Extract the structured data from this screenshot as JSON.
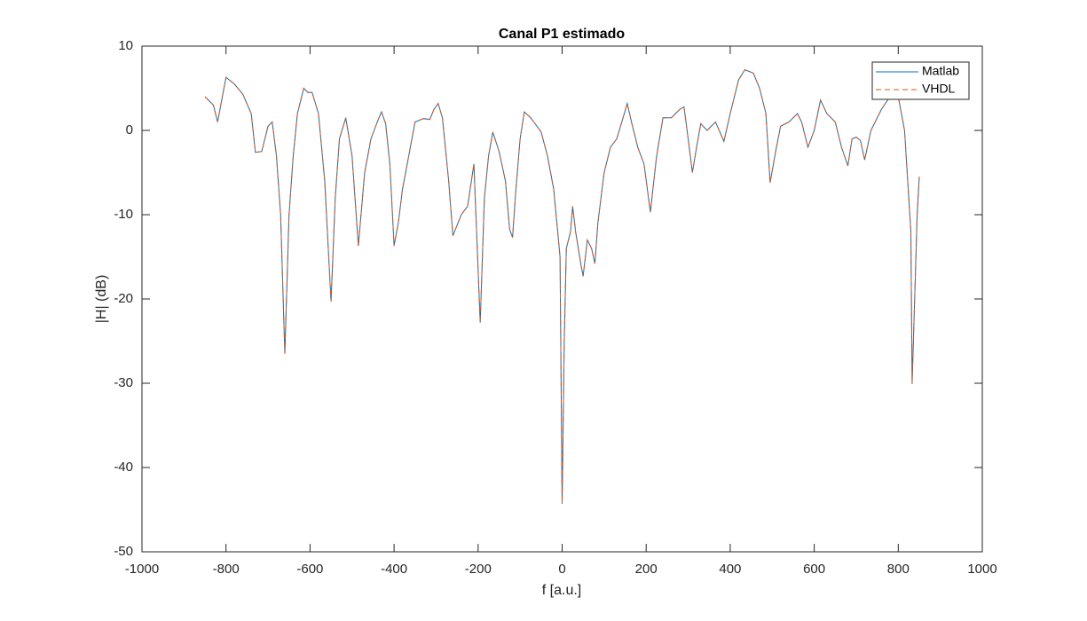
{
  "chart_data": {
    "type": "line",
    "title": "Canal P1 estimado",
    "xlabel": "f [a.u.]",
    "ylabel": "|H| (dB)",
    "x": [
      -850,
      -830,
      -820,
      -800,
      -780,
      -760,
      -740,
      -730,
      -715,
      -700,
      -690,
      -680,
      -670,
      -660,
      -650,
      -640,
      -630,
      -615,
      -605,
      -595,
      -580,
      -565,
      -550,
      -540,
      -530,
      -515,
      -500,
      -485,
      -470,
      -455,
      -440,
      -430,
      -420,
      -410,
      -400,
      -390,
      -380,
      -365,
      -350,
      -330,
      -315,
      -305,
      -295,
      -285,
      -270,
      -260,
      -240,
      -225,
      -210,
      -195,
      -185,
      -175,
      -165,
      -150,
      -135,
      -125,
      -118,
      -110,
      -100,
      -90,
      -75,
      -60,
      -50,
      -35,
      -20,
      -5,
      0,
      5,
      10,
      20,
      25,
      32,
      45,
      50,
      60,
      70,
      78,
      85,
      100,
      115,
      130,
      145,
      155,
      165,
      180,
      195,
      210,
      225,
      240,
      260,
      280,
      290,
      300,
      310,
      320,
      330,
      345,
      365,
      385,
      400,
      420,
      435,
      455,
      470,
      485,
      495,
      510,
      520,
      540,
      560,
      570,
      585,
      600,
      615,
      630,
      650,
      665,
      680,
      690,
      700,
      710,
      720,
      735,
      745,
      760,
      780,
      800,
      815,
      830,
      833,
      845,
      850
    ],
    "series": [
      {
        "name": "Matlab",
        "color": "#0072bd",
        "dash": false,
        "values": [
          4,
          3,
          1,
          6.3,
          5.5,
          4.3,
          2,
          -2.6,
          -2.5,
          0.5,
          1,
          -3,
          -10,
          -26.5,
          -10,
          -3,
          2,
          5,
          4.5,
          4.5,
          2,
          -6,
          -20.3,
          -8,
          -1,
          1.5,
          -3,
          -13.7,
          -5,
          -1,
          1,
          2.2,
          0.8,
          -4,
          -13.7,
          -11,
          -7,
          -3,
          1,
          1.4,
          1.3,
          2.5,
          3.2,
          1.5,
          -6,
          -12.5,
          -10,
          -9,
          -4,
          -22.8,
          -8,
          -3,
          -0.2,
          -2.5,
          -6,
          -11.7,
          -12.7,
          -7,
          -1,
          2.2,
          1.5,
          0.5,
          -0.2,
          -3,
          -7,
          -15,
          -44.3,
          -25,
          -14,
          -12,
          -9,
          -12,
          -16,
          -17.3,
          -13,
          -14,
          -15.8,
          -11,
          -5,
          -2,
          -1,
          1.5,
          3.2,
          1,
          -2,
          -4,
          -9.7,
          -3,
          1.5,
          1.5,
          2.5,
          2.8,
          -1,
          -5,
          -2,
          0.8,
          0,
          1,
          -1.3,
          2,
          6,
          7.2,
          6.8,
          5,
          2,
          -6.2,
          -2,
          0.5,
          1,
          2,
          1,
          -2,
          0,
          3.6,
          2,
          1,
          -2,
          -4.2,
          -1,
          -0.8,
          -1.2,
          -3.5,
          0,
          1,
          2.5,
          4,
          4,
          0,
          -12,
          -30.1,
          -10,
          -5.5
        ]
      },
      {
        "name": "VHDL",
        "color": "#d95319",
        "dash": true,
        "values": [
          4,
          3,
          1,
          6.3,
          5.5,
          4.3,
          2,
          -2.6,
          -2.5,
          0.5,
          1,
          -3,
          -10,
          -26.5,
          -10,
          -3,
          2,
          5,
          4.5,
          4.5,
          2,
          -6,
          -20.3,
          -8,
          -1,
          1.5,
          -3,
          -13.7,
          -5,
          -1,
          1,
          2.2,
          0.8,
          -4,
          -13.7,
          -11,
          -7,
          -3,
          1,
          1.4,
          1.3,
          2.5,
          3.2,
          1.5,
          -6,
          -12.5,
          -10,
          -9,
          -4,
          -22.8,
          -8,
          -3,
          -0.2,
          -2.5,
          -6,
          -11.7,
          -12.7,
          -7,
          -1,
          2.2,
          1.5,
          0.5,
          -0.2,
          -3,
          -7,
          -15,
          -44.3,
          -25,
          -14,
          -12,
          -9,
          -12,
          -16,
          -17.3,
          -13,
          -14,
          -15.8,
          -11,
          -5,
          -2,
          -1,
          1.5,
          3.2,
          1,
          -2,
          -4,
          -9.7,
          -3,
          1.5,
          1.5,
          2.5,
          2.8,
          -1,
          -5,
          -2,
          0.8,
          0,
          1,
          -1.3,
          2,
          6,
          7.2,
          6.8,
          5,
          2,
          -6.2,
          -2,
          0.5,
          1,
          2,
          1,
          -2,
          0,
          3.6,
          2,
          1,
          -2,
          -4.2,
          -1,
          -0.8,
          -1.2,
          -3.5,
          0,
          1,
          2.5,
          4,
          4,
          0,
          -12,
          -30.1,
          -10,
          -5.5
        ]
      }
    ],
    "xlim": [
      -1000,
      1000
    ],
    "xticks": [
      -1000,
      -800,
      -600,
      -400,
      -200,
      0,
      200,
      400,
      600,
      800,
      1000
    ],
    "ylim": [
      -50,
      10
    ],
    "yticks": [
      -50,
      -40,
      -30,
      -20,
      -10,
      0,
      10
    ],
    "grid": false,
    "legend": "northeast"
  }
}
